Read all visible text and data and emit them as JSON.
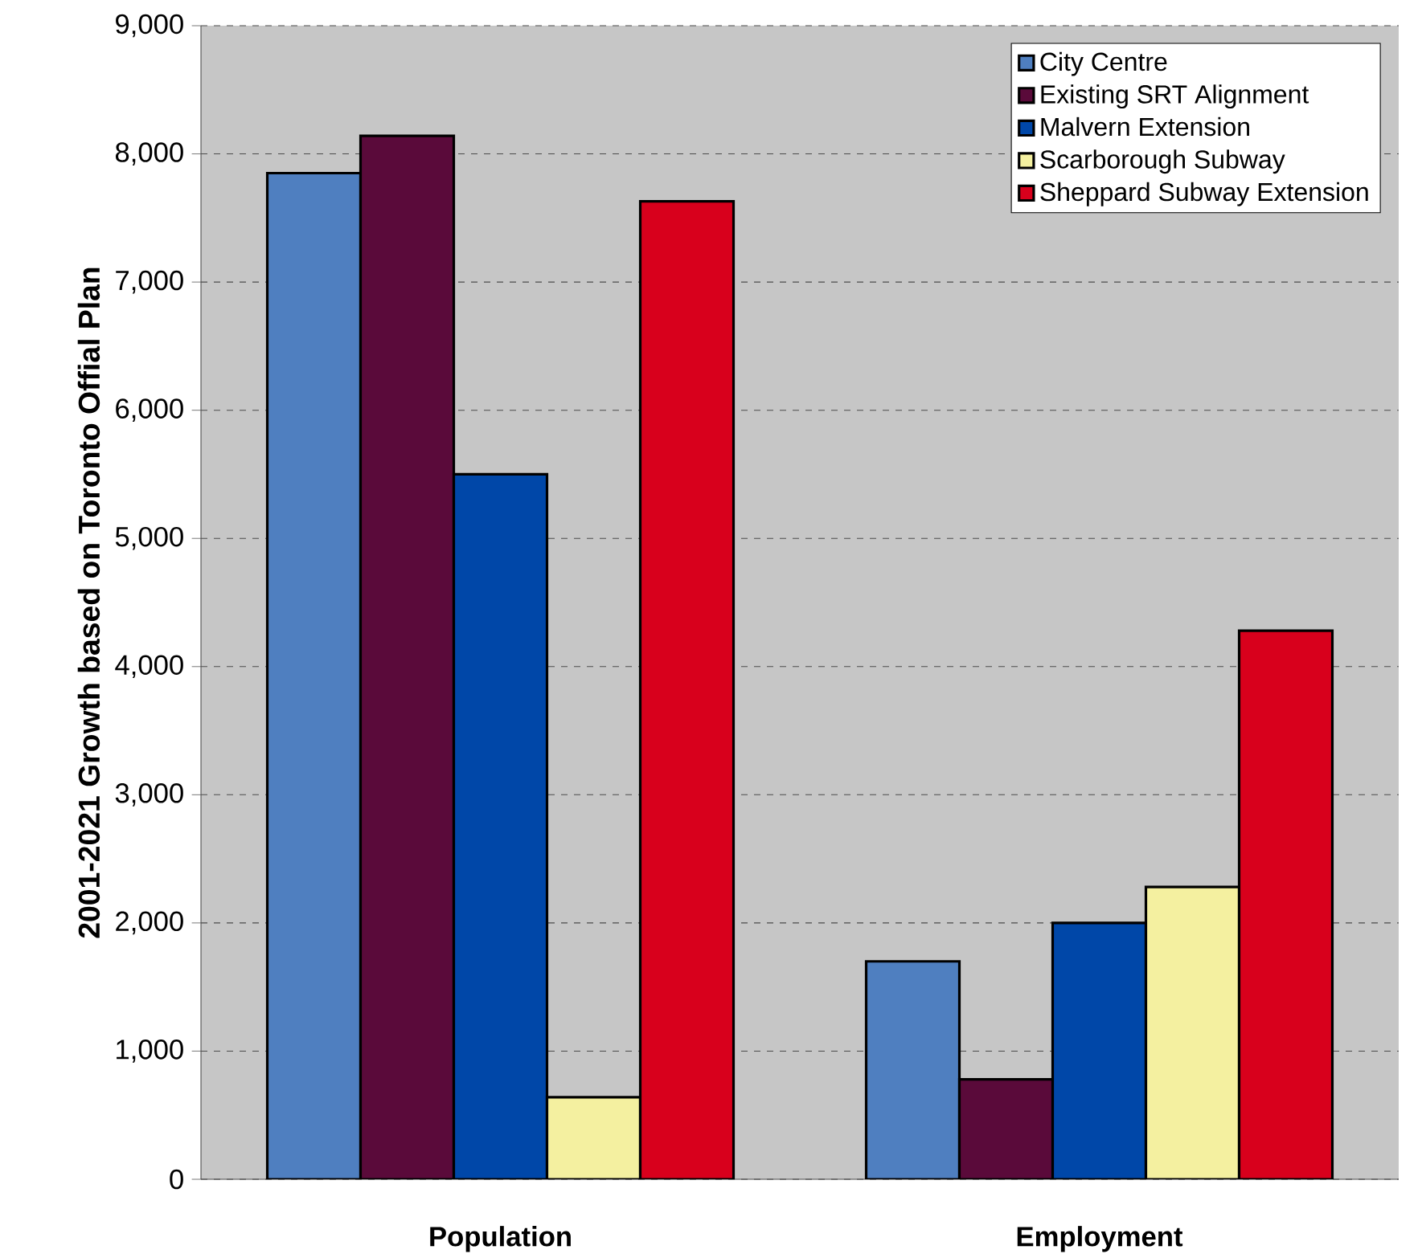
{
  "chart_data": {
    "type": "bar",
    "ylabel": "2001-2021 Growth  based on Toronto Offial Plan",
    "categories": [
      "Population",
      "Employment"
    ],
    "series": [
      {
        "name": "City Centre",
        "color": "#4f7fc0",
        "values": [
          7850,
          1700
        ]
      },
      {
        "name": "Existing SRT Alignment",
        "color": "#5a0a3a",
        "values": [
          8140,
          780
        ]
      },
      {
        "name": "Malvern Extension",
        "color": "#0047a8",
        "values": [
          5500,
          2000
        ]
      },
      {
        "name": "Scarborough Subway",
        "color": "#f4f0a0",
        "values": [
          640,
          2280
        ]
      },
      {
        "name": "Sheppard Subway Extension",
        "color": "#d8001c",
        "values": [
          7630,
          4280
        ]
      }
    ],
    "ylim": [
      0,
      9000
    ],
    "yticks": [
      {
        "value": 0,
        "label": "0"
      },
      {
        "value": 1000,
        "label": "1,000"
      },
      {
        "value": 2000,
        "label": "2,000"
      },
      {
        "value": 3000,
        "label": "3,000"
      },
      {
        "value": 4000,
        "label": "4,000"
      },
      {
        "value": 5000,
        "label": "5,000"
      },
      {
        "value": 6000,
        "label": "6,000"
      },
      {
        "value": 7000,
        "label": "7,000"
      },
      {
        "value": 8000,
        "label": "8,000"
      },
      {
        "value": 9000,
        "label": "9,000"
      }
    ],
    "grid": "y",
    "legend": "top right"
  }
}
